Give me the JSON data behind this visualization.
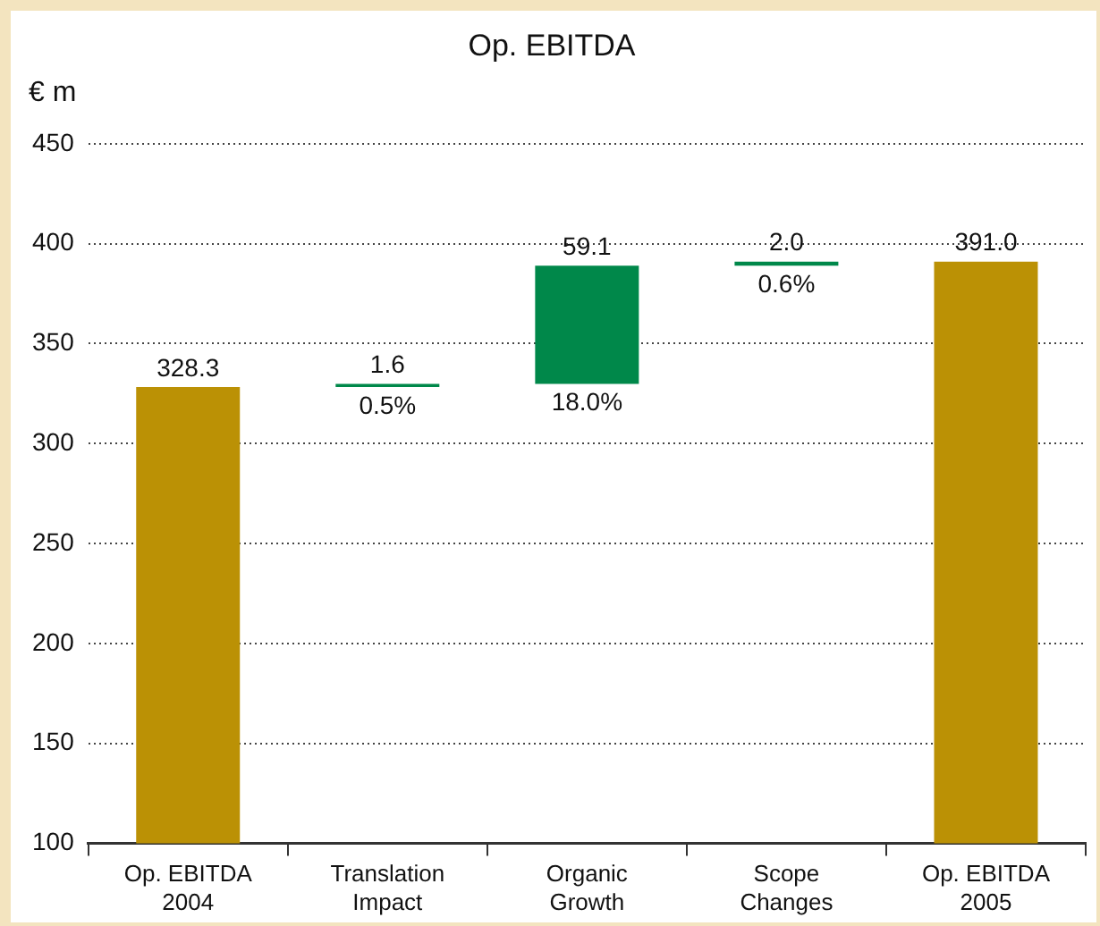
{
  "chart_data": {
    "type": "bar",
    "title": "Op. EBITDA",
    "ylabel": "€ m",
    "categories": [
      "Op. EBITDA 2004",
      "Translation Impact",
      "Organic Growth",
      "Scope Changes",
      "Op. EBITDA 2005"
    ],
    "values": [
      328.3,
      1.6,
      59.1,
      2.0,
      391.0
    ],
    "base": [
      0,
      328.3,
      329.9,
      389.0,
      0
    ],
    "colors": [
      "#bb9105",
      "#00884a",
      "#00884a",
      "#00884a",
      "#bb9105"
    ],
    "value_labels": [
      "328.3",
      "1.6",
      "59.1",
      "2.0",
      "391.0"
    ],
    "annotations": [
      {
        "text": "0.5%",
        "x": "Translation Impact",
        "y": 328.3
      },
      {
        "text": "18.0%",
        "x": "Organic Growth",
        "y": 329.9
      },
      {
        "text": "0.6%",
        "x": "Scope Changes",
        "y": 389.0
      }
    ],
    "ylim": [
      100,
      450
    ],
    "yticks": [
      100,
      150,
      200,
      250,
      300,
      350,
      400,
      450
    ],
    "grid": "y",
    "legend": false
  }
}
